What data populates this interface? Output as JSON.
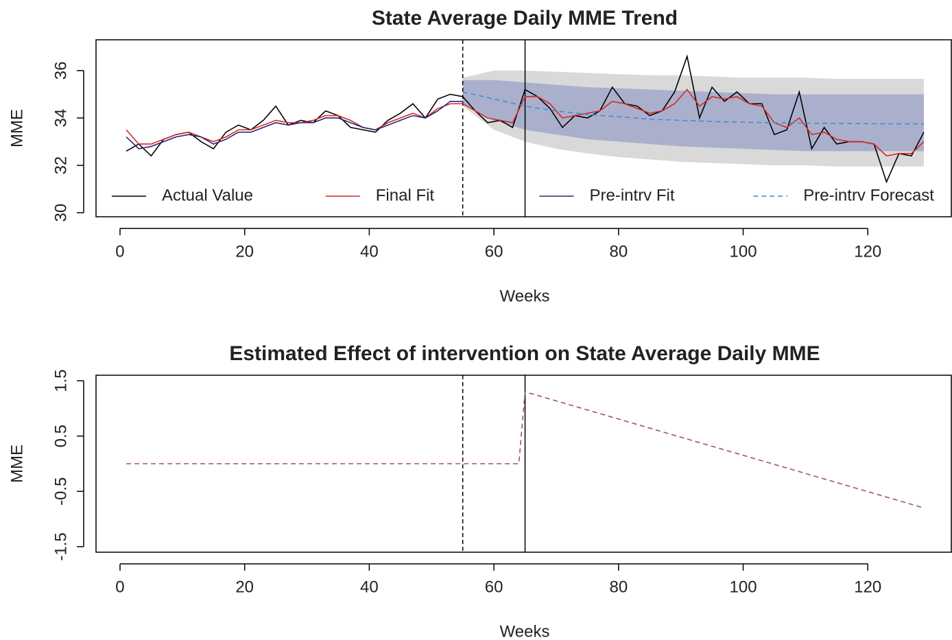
{
  "chart_data": [
    {
      "type": "line",
      "title": "State Average Daily MME Trend",
      "xlabel": "Weeks",
      "ylabel": "MME",
      "xlim": [
        -3.85,
        133.4
      ],
      "ylim": [
        29.83,
        37.3
      ],
      "xticks": [
        0,
        20,
        40,
        60,
        80,
        100,
        120
      ],
      "yticks": [
        30,
        32,
        34,
        36
      ],
      "legend": "bottom",
      "vlines": [
        {
          "x": 55,
          "dash": true
        },
        {
          "x": 65,
          "dash": false
        }
      ],
      "bands": [
        {
          "color": "#d9d9d9",
          "x": [
            55,
            60,
            65,
            70,
            75,
            80,
            85,
            90,
            95,
            100,
            105,
            110,
            115,
            120,
            125,
            129
          ],
          "upper": [
            35.7,
            36.0,
            36.0,
            35.95,
            35.9,
            35.85,
            35.8,
            35.8,
            35.75,
            35.7,
            35.7,
            35.7,
            35.65,
            35.65,
            35.65,
            35.65
          ],
          "lower": [
            34.5,
            33.5,
            33.0,
            32.7,
            32.5,
            32.35,
            32.25,
            32.15,
            32.1,
            32.05,
            32.0,
            32.0,
            31.95,
            31.95,
            31.95,
            31.95
          ]
        },
        {
          "color": "#aab0cc",
          "x": [
            55,
            60,
            65,
            70,
            75,
            80,
            85,
            90,
            95,
            100,
            105,
            110,
            115,
            120,
            125,
            129
          ],
          "upper": [
            35.6,
            35.6,
            35.5,
            35.4,
            35.3,
            35.25,
            35.2,
            35.15,
            35.1,
            35.05,
            35.0,
            35.0,
            35.0,
            35.0,
            35.0,
            35.0
          ],
          "lower": [
            34.6,
            33.9,
            33.5,
            33.3,
            33.1,
            33.0,
            32.9,
            32.8,
            32.75,
            32.7,
            32.65,
            32.6,
            32.6,
            32.6,
            32.6,
            32.6
          ]
        }
      ],
      "series": [
        {
          "name": "Actual Value",
          "color": "#000000",
          "dash": false,
          "x": [
            1,
            3,
            5,
            7,
            9,
            11,
            13,
            15,
            17,
            19,
            21,
            23,
            25,
            27,
            29,
            31,
            33,
            35,
            37,
            39,
            41,
            43,
            45,
            47,
            49,
            51,
            53,
            55,
            57,
            59,
            61,
            63,
            65,
            67,
            69,
            71,
            73,
            75,
            77,
            79,
            81,
            83,
            85,
            87,
            89,
            91,
            93,
            95,
            97,
            99,
            101,
            103,
            105,
            107,
            109,
            111,
            113,
            115,
            117,
            119,
            121,
            123,
            125,
            127,
            129
          ],
          "values": [
            32.6,
            32.9,
            32.4,
            33.1,
            33.3,
            33.4,
            33.0,
            32.7,
            33.4,
            33.7,
            33.5,
            33.9,
            34.5,
            33.7,
            33.9,
            33.8,
            34.3,
            34.1,
            33.6,
            33.5,
            33.4,
            33.9,
            34.2,
            34.6,
            34.0,
            34.8,
            35.0,
            34.9,
            34.3,
            33.8,
            33.9,
            33.6,
            35.2,
            34.9,
            34.4,
            33.6,
            34.1,
            34.0,
            34.3,
            35.3,
            34.6,
            34.5,
            34.1,
            34.3,
            35.1,
            36.6,
            34.0,
            35.3,
            34.7,
            35.1,
            34.6,
            34.6,
            33.3,
            33.5,
            35.1,
            32.7,
            33.6,
            32.9,
            33.0,
            33.0,
            32.9,
            31.3,
            32.5,
            32.4,
            33.4
          ]
        },
        {
          "name": "Final Fit",
          "color": "#d62728",
          "dash": false,
          "x": [
            1,
            3,
            5,
            7,
            9,
            11,
            13,
            15,
            17,
            19,
            21,
            23,
            25,
            27,
            29,
            31,
            33,
            35,
            37,
            39,
            41,
            43,
            45,
            47,
            49,
            51,
            53,
            55,
            57,
            59,
            61,
            63,
            65,
            67,
            69,
            71,
            73,
            75,
            77,
            79,
            81,
            83,
            85,
            87,
            89,
            91,
            93,
            95,
            97,
            99,
            101,
            103,
            105,
            107,
            109,
            111,
            113,
            115,
            117,
            119,
            121,
            123,
            125,
            127,
            129
          ],
          "values": [
            33.5,
            32.9,
            32.9,
            33.1,
            33.3,
            33.4,
            33.2,
            33.0,
            33.2,
            33.5,
            33.5,
            33.7,
            33.9,
            33.8,
            33.8,
            33.9,
            34.1,
            34.1,
            33.9,
            33.6,
            33.5,
            33.8,
            34.0,
            34.2,
            34.0,
            34.4,
            34.6,
            34.6,
            34.3,
            34.0,
            33.9,
            33.8,
            34.9,
            34.9,
            34.6,
            34.0,
            34.1,
            34.2,
            34.3,
            34.7,
            34.6,
            34.4,
            34.2,
            34.3,
            34.6,
            35.2,
            34.5,
            34.9,
            34.8,
            34.9,
            34.6,
            34.5,
            33.8,
            33.6,
            34.0,
            33.3,
            33.4,
            33.1,
            33.0,
            33.0,
            32.9,
            32.4,
            32.5,
            32.5,
            33.0
          ]
        },
        {
          "name": "Pre-intrv Fit",
          "color": "#26267a",
          "dash": false,
          "x": [
            1,
            3,
            5,
            7,
            9,
            11,
            13,
            15,
            17,
            19,
            21,
            23,
            25,
            27,
            29,
            31,
            33,
            35,
            37,
            39,
            41,
            43,
            45,
            47,
            49,
            51,
            53,
            55
          ],
          "values": [
            33.2,
            32.7,
            32.8,
            33.0,
            33.2,
            33.3,
            33.2,
            32.9,
            33.1,
            33.4,
            33.4,
            33.6,
            33.8,
            33.7,
            33.8,
            33.8,
            34.0,
            34.0,
            33.8,
            33.6,
            33.5,
            33.7,
            33.9,
            34.1,
            34.0,
            34.3,
            34.7,
            34.7
          ]
        },
        {
          "name": "Pre-intrv Forecast",
          "color": "#3a8fd0",
          "dash": true,
          "x": [
            55,
            60,
            65,
            70,
            75,
            80,
            85,
            90,
            95,
            100,
            105,
            110,
            115,
            120,
            125,
            129
          ],
          "values": [
            35.1,
            34.8,
            34.5,
            34.3,
            34.15,
            34.05,
            33.95,
            33.9,
            33.85,
            33.82,
            33.8,
            33.78,
            33.77,
            33.76,
            33.75,
            33.75
          ]
        }
      ]
    },
    {
      "type": "line",
      "title": "Estimated Effect of intervention on State Average Daily MME",
      "xlabel": "Weeks",
      "ylabel": "MME",
      "xlim": [
        -3.85,
        133.4
      ],
      "ylim": [
        -1.6,
        1.6
      ],
      "xticks": [
        0,
        20,
        40,
        60,
        80,
        100,
        120
      ],
      "yticks": [
        -1.5,
        -0.5,
        0.5,
        1.5
      ],
      "vlines": [
        {
          "x": 55,
          "dash": true
        },
        {
          "x": 65,
          "dash": false
        }
      ],
      "bands": [],
      "series": [
        {
          "color": "#a0506a",
          "dash": true,
          "x": [
            1,
            64,
            65,
            129
          ],
          "values": [
            0,
            0,
            1.3,
            -0.8
          ]
        }
      ]
    }
  ]
}
